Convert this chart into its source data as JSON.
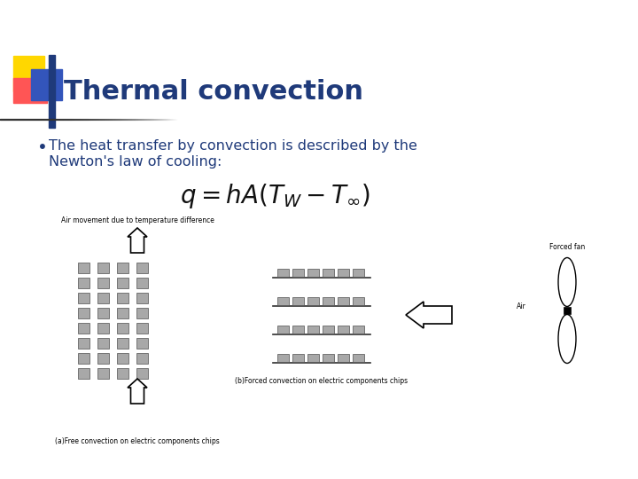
{
  "title": "Thermal convection",
  "title_color": "#1F3A7A",
  "title_fontsize": 22,
  "bullet_text_line1": "The heat transfer by convection is described by the",
  "bullet_text_line2": "Newton's law of cooling:",
  "text_color": "#1F3A7A",
  "text_fontsize": 11.5,
  "formula": "$q = hA(T_W - T_{\\infty})$",
  "formula_fontsize": 20,
  "caption_free": "(a)Free convection on electric components chips",
  "caption_forced": "(b)Forced convection on electric components chips",
  "label_air_movement": "Air movement due to temperature difference",
  "label_forced_fan": "Forced fan",
  "label_air": "Air",
  "background_color": "#FFFFFF",
  "chip_color": "#A8A8A8",
  "chip_edge_color": "#505050",
  "line_color": "#303030",
  "yellow_color": "#FFD700",
  "red_color": "#FF5555",
  "blue_color": "#3355BB",
  "decor_bar_color": "#1F3A7A",
  "hrule_color": "#555555"
}
